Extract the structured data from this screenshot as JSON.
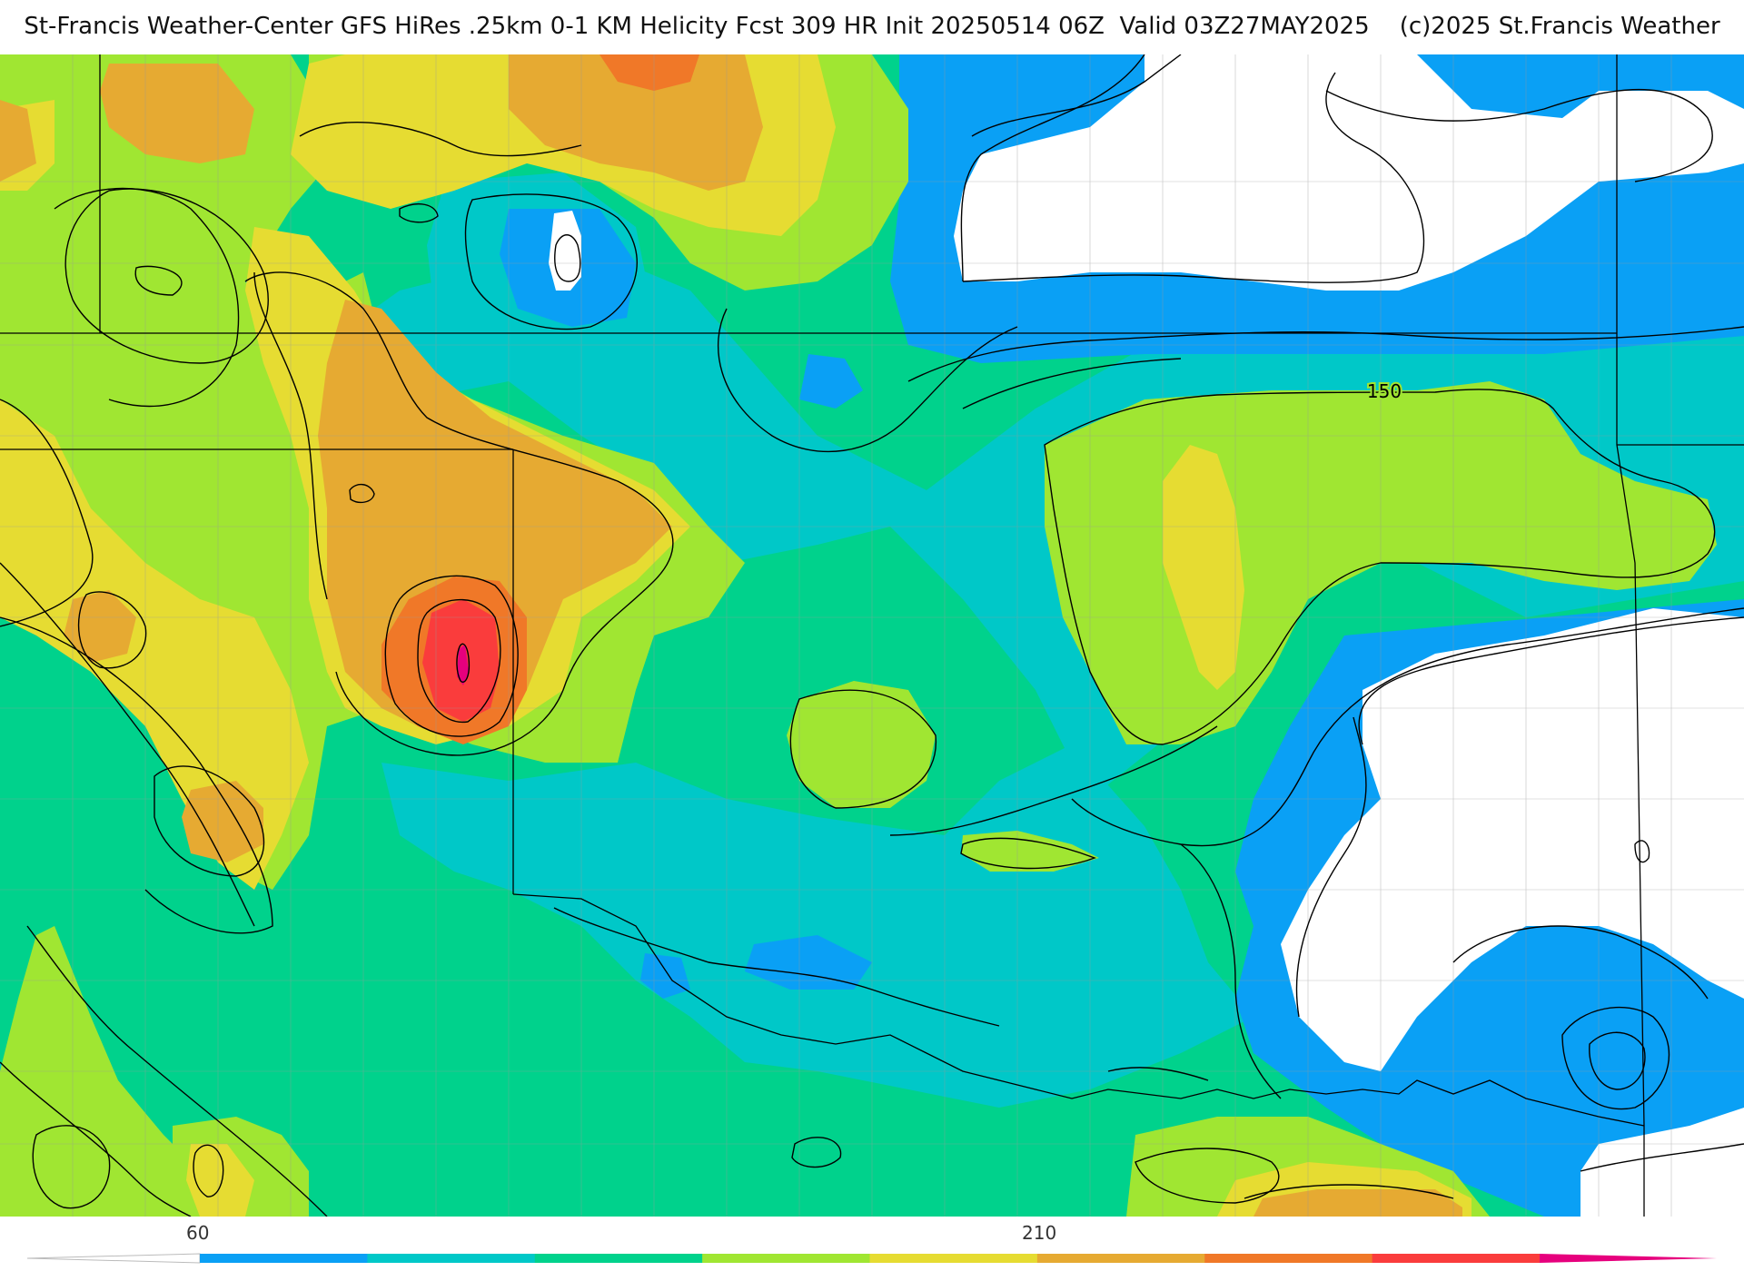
{
  "header": {
    "title": "St-Francis Weather-Center GFS HiRes .25km 0-1 KM Helicity Fcst 309 HR Init 20250514 06Z  Valid 03Z27MAY2025    (c)2025 St.Francis Weather"
  },
  "map": {
    "contour_labels": [
      {
        "text": "150"
      }
    ],
    "fill_colors": {
      "white": "#ffffff",
      "blue": "#0aa0f5",
      "cyan": "#00c8c8",
      "green": "#00d28c",
      "lime": "#a0e632",
      "yellow": "#e6dc32",
      "orange": "#e6aa32",
      "dark_orange": "#f07828",
      "red": "#fa3c3c",
      "magenta": "#e6007d"
    },
    "contour_color": "#000000",
    "boundary_color": "#000000",
    "county_color": "#9a9a9a"
  },
  "colorbar": {
    "labels": [
      "60",
      "210"
    ],
    "segments": [
      "#0aa0f5",
      "#00c8c8",
      "#00d28c",
      "#a0e632",
      "#e6dc32",
      "#e6aa32",
      "#f07828",
      "#fa3c3c",
      "#e6007d"
    ]
  }
}
